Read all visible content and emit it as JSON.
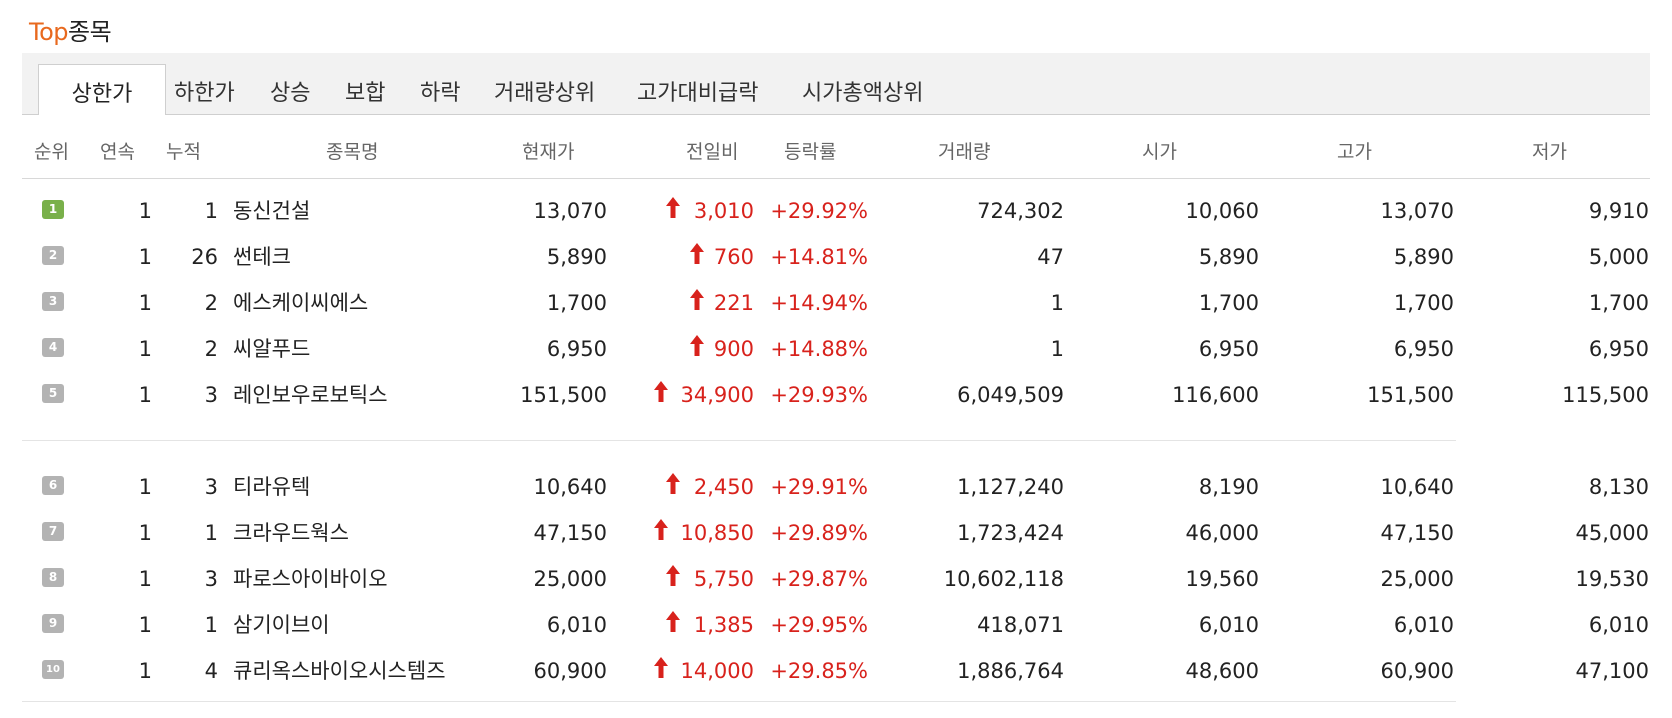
{
  "title": {
    "accent": "Top",
    "rest": "종목"
  },
  "tabs": [
    {
      "label": "상한가",
      "active": true
    },
    {
      "label": "하한가"
    },
    {
      "label": "상승"
    },
    {
      "label": "보합"
    },
    {
      "label": "하락"
    },
    {
      "label": "거래량상위"
    },
    {
      "label": "고가대비급락"
    },
    {
      "label": "시가총액상위"
    }
  ],
  "columns": [
    "순위",
    "연속",
    "누적",
    "종목명",
    "현재가",
    "전일비",
    "등락률",
    "거래량",
    "시가",
    "고가",
    "저가"
  ],
  "colors": {
    "accent": "#e8691e",
    "up": "#d8221c",
    "badge_first": "#79b04a",
    "badge": "#b3b3b3"
  },
  "icons": {
    "change": "red-up-arrow-icon"
  },
  "rows": [
    {
      "rank": "1",
      "streak": "1",
      "cumulative": "1",
      "name": "동신건설",
      "price": "13,070",
      "change": "3,010",
      "rate": "+29.92%",
      "volume": "724,302",
      "open": "10,060",
      "high": "13,070",
      "low": "9,910"
    },
    {
      "rank": "2",
      "streak": "1",
      "cumulative": "26",
      "name": "썬테크",
      "price": "5,890",
      "change": "760",
      "rate": "+14.81%",
      "volume": "47",
      "open": "5,890",
      "high": "5,890",
      "low": "5,000"
    },
    {
      "rank": "3",
      "streak": "1",
      "cumulative": "2",
      "name": "에스케이씨에스",
      "price": "1,700",
      "change": "221",
      "rate": "+14.94%",
      "volume": "1",
      "open": "1,700",
      "high": "1,700",
      "low": "1,700"
    },
    {
      "rank": "4",
      "streak": "1",
      "cumulative": "2",
      "name": "씨알푸드",
      "price": "6,950",
      "change": "900",
      "rate": "+14.88%",
      "volume": "1",
      "open": "6,950",
      "high": "6,950",
      "low": "6,950"
    },
    {
      "rank": "5",
      "streak": "1",
      "cumulative": "3",
      "name": "레인보우로보틱스",
      "price": "151,500",
      "change": "34,900",
      "rate": "+29.93%",
      "volume": "6,049,509",
      "open": "116,600",
      "high": "151,500",
      "low": "115,500"
    },
    {
      "rank": "6",
      "streak": "1",
      "cumulative": "3",
      "name": "티라유텍",
      "price": "10,640",
      "change": "2,450",
      "rate": "+29.91%",
      "volume": "1,127,240",
      "open": "8,190",
      "high": "10,640",
      "low": "8,130"
    },
    {
      "rank": "7",
      "streak": "1",
      "cumulative": "1",
      "name": "크라우드웍스",
      "price": "47,150",
      "change": "10,850",
      "rate": "+29.89%",
      "volume": "1,723,424",
      "open": "46,000",
      "high": "47,150",
      "low": "45,000"
    },
    {
      "rank": "8",
      "streak": "1",
      "cumulative": "3",
      "name": "파로스아이바이오",
      "price": "25,000",
      "change": "5,750",
      "rate": "+29.87%",
      "volume": "10,602,118",
      "open": "19,560",
      "high": "25,000",
      "low": "19,530"
    },
    {
      "rank": "9",
      "streak": "1",
      "cumulative": "1",
      "name": "삼기이브이",
      "price": "6,010",
      "change": "1,385",
      "rate": "+29.95%",
      "volume": "418,071",
      "open": "6,010",
      "high": "6,010",
      "low": "6,010"
    },
    {
      "rank": "10",
      "streak": "1",
      "cumulative": "4",
      "name": "큐리옥스바이오시스템즈",
      "price": "60,900",
      "change": "14,000",
      "rate": "+29.85%",
      "volume": "1,886,764",
      "open": "48,600",
      "high": "60,900",
      "low": "47,100"
    }
  ]
}
